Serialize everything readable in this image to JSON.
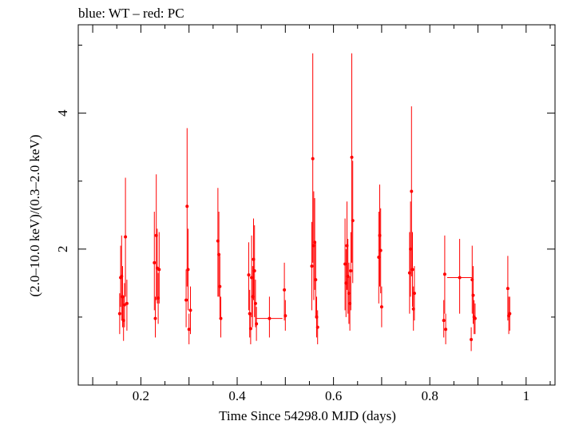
{
  "chart_data": {
    "type": "scatter",
    "title": "blue: WT – red: PC",
    "xlabel": "Time Since 54298.0 MJD (days)",
    "ylabel": "(2.0–10.0 keV)/(0.3–2.0 keV)",
    "xlim": [
      0.07,
      1.06
    ],
    "ylim": [
      0,
      5.3
    ],
    "x_ticks": [
      0.2,
      0.4,
      0.6,
      0.8,
      1
    ],
    "x_tick_labels": [
      "0.2",
      "0.4",
      "0.6",
      "0.8",
      "1"
    ],
    "y_ticks": [
      2,
      4
    ],
    "y_tick_labels": [
      "2",
      "4"
    ],
    "grid": false,
    "series": [
      {
        "name": "PC",
        "color": "#ff0000",
        "points": [
          {
            "x": 0.156,
            "y": 1.05,
            "lo": 0.75,
            "hi": 1.35,
            "xerr": 0.001
          },
          {
            "x": 0.158,
            "y": 1.58,
            "lo": 1.15,
            "hi": 2.05,
            "xerr": 0.001
          },
          {
            "x": 0.16,
            "y": 1.6,
            "lo": 0.95,
            "hi": 2.2,
            "xerr": 0.001
          },
          {
            "x": 0.162,
            "y": 1.3,
            "lo": 0.85,
            "hi": 1.75,
            "xerr": 0.001
          },
          {
            "x": 0.164,
            "y": 0.95,
            "lo": 0.65,
            "hi": 1.3,
            "xerr": 0.001
          },
          {
            "x": 0.166,
            "y": 1.18,
            "lo": 0.85,
            "hi": 1.5,
            "xerr": 0.001
          },
          {
            "x": 0.168,
            "y": 2.18,
            "lo": 1.3,
            "hi": 3.05,
            "xerr": 0.001
          },
          {
            "x": 0.171,
            "y": 1.2,
            "lo": 0.8,
            "hi": 1.55,
            "xerr": 0.001
          },
          {
            "x": 0.228,
            "y": 1.8,
            "lo": 1.1,
            "hi": 2.55,
            "xerr": 0.001
          },
          {
            "x": 0.23,
            "y": 0.98,
            "lo": 0.7,
            "hi": 1.3,
            "xerr": 0.001
          },
          {
            "x": 0.232,
            "y": 2.2,
            "lo": 1.25,
            "hi": 3.1,
            "xerr": 0.001
          },
          {
            "x": 0.234,
            "y": 1.72,
            "lo": 1.2,
            "hi": 2.3,
            "xerr": 0.001
          },
          {
            "x": 0.236,
            "y": 1.28,
            "lo": 0.9,
            "hi": 1.65,
            "xerr": 0.001
          },
          {
            "x": 0.238,
            "y": 1.7,
            "lo": 1.2,
            "hi": 2.25,
            "xerr": 0.001
          },
          {
            "x": 0.294,
            "y": 1.25,
            "lo": 0.85,
            "hi": 1.7,
            "xerr": 0.001
          },
          {
            "x": 0.296,
            "y": 2.63,
            "lo": 1.45,
            "hi": 3.78,
            "xerr": 0.001
          },
          {
            "x": 0.298,
            "y": 1.7,
            "lo": 1.1,
            "hi": 2.3,
            "xerr": 0.001
          },
          {
            "x": 0.3,
            "y": 0.82,
            "lo": 0.6,
            "hi": 1.05,
            "xerr": 0.001
          },
          {
            "x": 0.303,
            "y": 1.1,
            "lo": 0.75,
            "hi": 1.45,
            "xerr": 0.001
          },
          {
            "x": 0.36,
            "y": 2.12,
            "lo": 1.3,
            "hi": 2.9,
            "xerr": 0.001
          },
          {
            "x": 0.362,
            "y": 1.92,
            "lo": 1.3,
            "hi": 2.55,
            "xerr": 0.001
          },
          {
            "x": 0.364,
            "y": 1.45,
            "lo": 1.0,
            "hi": 1.9,
            "xerr": 0.001
          },
          {
            "x": 0.366,
            "y": 0.98,
            "lo": 0.7,
            "hi": 1.3,
            "xerr": 0.001
          },
          {
            "x": 0.424,
            "y": 1.62,
            "lo": 1.1,
            "hi": 2.1,
            "xerr": 0.001
          },
          {
            "x": 0.426,
            "y": 1.05,
            "lo": 0.7,
            "hi": 1.4,
            "xerr": 0.001
          },
          {
            "x": 0.428,
            "y": 0.83,
            "lo": 0.6,
            "hi": 1.05,
            "xerr": 0.001
          },
          {
            "x": 0.43,
            "y": 1.58,
            "lo": 1.0,
            "hi": 2.2,
            "xerr": 0.001
          },
          {
            "x": 0.432,
            "y": 1.3,
            "lo": 0.85,
            "hi": 1.75,
            "xerr": 0.001
          },
          {
            "x": 0.434,
            "y": 1.85,
            "lo": 1.25,
            "hi": 2.45,
            "xerr": 0.001
          },
          {
            "x": 0.436,
            "y": 1.68,
            "lo": 1.0,
            "hi": 2.35,
            "xerr": 0.001
          },
          {
            "x": 0.438,
            "y": 1.2,
            "lo": 0.85,
            "hi": 1.55,
            "xerr": 0.001
          },
          {
            "x": 0.44,
            "y": 0.9,
            "lo": 0.65,
            "hi": 1.15,
            "xerr": 0.001
          },
          {
            "x": 0.467,
            "y": 0.98,
            "lo": 0.7,
            "hi": 1.3,
            "xerr": 0.027
          },
          {
            "x": 0.498,
            "y": 1.4,
            "lo": 0.95,
            "hi": 1.8,
            "xerr": 0.001
          },
          {
            "x": 0.5,
            "y": 1.02,
            "lo": 0.8,
            "hi": 1.25,
            "xerr": 0.001
          },
          {
            "x": 0.555,
            "y": 1.75,
            "lo": 1.1,
            "hi": 2.4,
            "xerr": 0.001
          },
          {
            "x": 0.557,
            "y": 3.33,
            "lo": 1.8,
            "hi": 4.88,
            "xerr": 0.001
          },
          {
            "x": 0.559,
            "y": 2.05,
            "lo": 1.25,
            "hi": 2.85,
            "xerr": 0.001
          },
          {
            "x": 0.561,
            "y": 2.1,
            "lo": 1.4,
            "hi": 2.75,
            "xerr": 0.001
          },
          {
            "x": 0.563,
            "y": 1.55,
            "lo": 1.0,
            "hi": 2.1,
            "xerr": 0.001
          },
          {
            "x": 0.565,
            "y": 1.0,
            "lo": 0.7,
            "hi": 1.3,
            "xerr": 0.001
          },
          {
            "x": 0.567,
            "y": 0.85,
            "lo": 0.6,
            "hi": 1.1,
            "xerr": 0.001
          },
          {
            "x": 0.624,
            "y": 1.78,
            "lo": 1.1,
            "hi": 2.45,
            "xerr": 0.001
          },
          {
            "x": 0.626,
            "y": 1.5,
            "lo": 1.0,
            "hi": 2.0,
            "xerr": 0.001
          },
          {
            "x": 0.628,
            "y": 2.05,
            "lo": 1.4,
            "hi": 2.7,
            "xerr": 0.001
          },
          {
            "x": 0.63,
            "y": 1.6,
            "lo": 1.05,
            "hi": 2.15,
            "xerr": 0.001
          },
          {
            "x": 0.632,
            "y": 1.35,
            "lo": 0.9,
            "hi": 1.8,
            "xerr": 0.001
          },
          {
            "x": 0.634,
            "y": 1.2,
            "lo": 0.8,
            "hi": 1.6,
            "xerr": 0.001
          },
          {
            "x": 0.636,
            "y": 1.68,
            "lo": 1.1,
            "hi": 2.25,
            "xerr": 0.001
          },
          {
            "x": 0.638,
            "y": 3.35,
            "lo": 1.8,
            "hi": 4.88,
            "xerr": 0.001
          },
          {
            "x": 0.64,
            "y": 2.42,
            "lo": 1.5,
            "hi": 3.3,
            "xerr": 0.001
          },
          {
            "x": 0.694,
            "y": 1.88,
            "lo": 1.2,
            "hi": 2.55,
            "xerr": 0.001
          },
          {
            "x": 0.696,
            "y": 2.2,
            "lo": 1.45,
            "hi": 2.95,
            "xerr": 0.001
          },
          {
            "x": 0.698,
            "y": 1.98,
            "lo": 1.35,
            "hi": 2.6,
            "xerr": 0.001
          },
          {
            "x": 0.7,
            "y": 1.15,
            "lo": 0.85,
            "hi": 1.45,
            "xerr": 0.001
          },
          {
            "x": 0.758,
            "y": 1.65,
            "lo": 1.05,
            "hi": 2.25,
            "xerr": 0.001
          },
          {
            "x": 0.76,
            "y": 2.0,
            "lo": 1.3,
            "hi": 2.7,
            "xerr": 0.001
          },
          {
            "x": 0.762,
            "y": 2.85,
            "lo": 1.6,
            "hi": 4.1,
            "xerr": 0.001
          },
          {
            "x": 0.764,
            "y": 1.7,
            "lo": 1.15,
            "hi": 2.25,
            "xerr": 0.001
          },
          {
            "x": 0.766,
            "y": 1.12,
            "lo": 0.8,
            "hi": 1.45,
            "xerr": 0.001
          },
          {
            "x": 0.768,
            "y": 1.35,
            "lo": 0.95,
            "hi": 1.75,
            "xerr": 0.001
          },
          {
            "x": 0.829,
            "y": 0.95,
            "lo": 0.7,
            "hi": 1.25,
            "xerr": 0.001
          },
          {
            "x": 0.831,
            "y": 1.63,
            "lo": 1.05,
            "hi": 2.2,
            "xerr": 0.001
          },
          {
            "x": 0.833,
            "y": 0.82,
            "lo": 0.6,
            "hi": 1.05,
            "xerr": 0.001
          },
          {
            "x": 0.862,
            "y": 1.58,
            "lo": 1.05,
            "hi": 2.15,
            "xerr": 0.026
          },
          {
            "x": 0.886,
            "y": 0.67,
            "lo": 0.5,
            "hi": 0.85,
            "xerr": 0.001
          },
          {
            "x": 0.888,
            "y": 1.55,
            "lo": 1.05,
            "hi": 2.05,
            "xerr": 0.001
          },
          {
            "x": 0.89,
            "y": 1.32,
            "lo": 0.9,
            "hi": 1.75,
            "xerr": 0.001
          },
          {
            "x": 0.892,
            "y": 1.0,
            "lo": 0.75,
            "hi": 1.25,
            "xerr": 0.001
          },
          {
            "x": 0.894,
            "y": 0.98,
            "lo": 0.75,
            "hi": 1.2,
            "xerr": 0.001
          },
          {
            "x": 0.962,
            "y": 1.42,
            "lo": 0.95,
            "hi": 1.9,
            "xerr": 0.001
          },
          {
            "x": 0.964,
            "y": 1.02,
            "lo": 0.75,
            "hi": 1.3,
            "xerr": 0.001
          },
          {
            "x": 0.966,
            "y": 1.05,
            "lo": 0.8,
            "hi": 1.3,
            "xerr": 0.001
          }
        ]
      }
    ]
  }
}
